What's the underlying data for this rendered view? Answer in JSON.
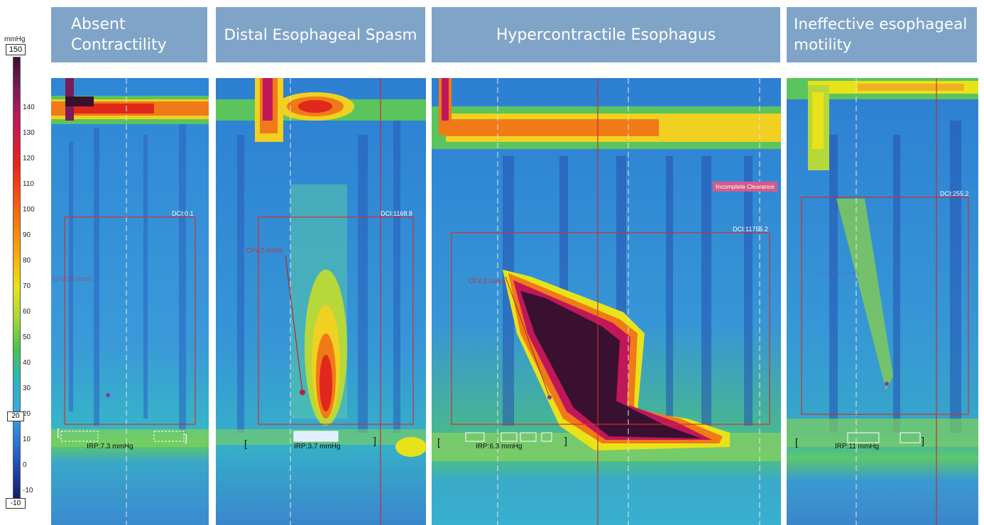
{
  "panels": [
    {
      "title": "Absent Contractility",
      "dci": "DCI:0.1",
      "irp": "IRP:7.3 mmHg",
      "velocity": "CFV:10.3cm/s"
    },
    {
      "title": "Distal Esophageal Spasm",
      "dci": "DCI:1168.8",
      "irp": "IRP:3.7 mmHg",
      "velocity": "CFV:7.0cm/s"
    },
    {
      "title": "Hypercontractile Esophagus",
      "dci": "DCI:11755.2",
      "irp": "IRP:6.3 mmHg",
      "velocity": "CFV:3.1cm/s",
      "badge": "Incomplete Clearance"
    },
    {
      "title": "Ineffective esophageal motility",
      "dci": "DCI:255.2",
      "irp": "IRP:11 mmHg",
      "velocity": "CFV:3.3cm/s"
    }
  ],
  "scale": {
    "unit": "mmHg",
    "max": "150",
    "min": "-10",
    "marker": "20",
    "ticks": [
      "140",
      "130",
      "120",
      "110",
      "100",
      "90",
      "80",
      "70",
      "60",
      "50",
      "40",
      "30",
      "20",
      "10",
      "0",
      "-10"
    ]
  },
  "colors": {
    "header_bg": "#7fa4c7",
    "box_line": "#d03030"
  }
}
